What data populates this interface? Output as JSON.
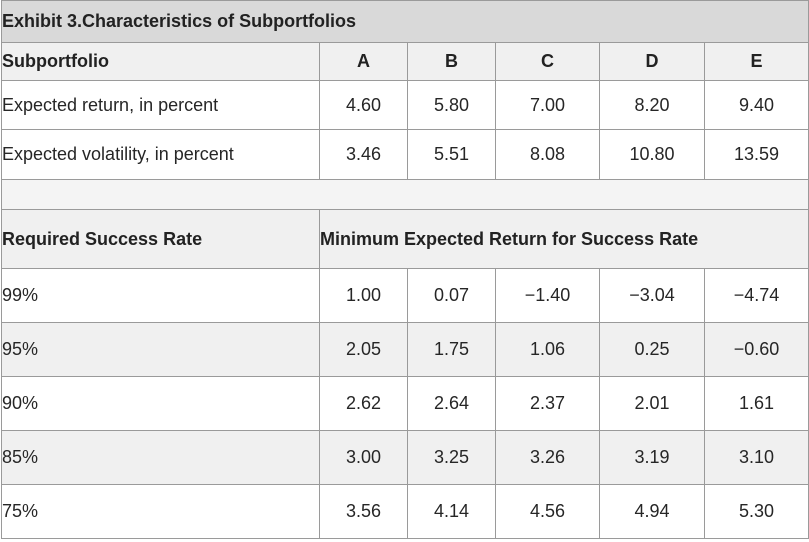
{
  "title": "Exhibit 3.Characteristics of Subportfolios",
  "section1": {
    "header_label": "Subportfolio",
    "columns": [
      "A",
      "B",
      "C",
      "D",
      "E"
    ],
    "rows": [
      {
        "label": "Expected return, in percent",
        "values": [
          "4.60",
          "5.80",
          "7.00",
          "8.20",
          "9.40"
        ]
      },
      {
        "label": "Expected volatility, in percent",
        "values": [
          "3.46",
          "5.51",
          "8.08",
          "10.80",
          "13.59"
        ]
      }
    ]
  },
  "section2": {
    "header_label": "Required Success Rate",
    "span_header": "Minimum Expected Return for Success Rate",
    "rows": [
      {
        "label": "99%",
        "values": [
          "1.00",
          "0.07",
          "−1.40",
          "−3.04",
          "−4.74"
        ]
      },
      {
        "label": "95%",
        "values": [
          "2.05",
          "1.75",
          "1.06",
          "0.25",
          "−0.60"
        ]
      },
      {
        "label": "90%",
        "values": [
          "2.62",
          "2.64",
          "2.37",
          "2.01",
          "1.61"
        ]
      },
      {
        "label": "85%",
        "values": [
          "3.00",
          "3.25",
          "3.26",
          "3.19",
          "3.10"
        ]
      },
      {
        "label": "75%",
        "values": [
          "3.56",
          "4.14",
          "4.56",
          "4.94",
          "5.30"
        ]
      }
    ]
  }
}
